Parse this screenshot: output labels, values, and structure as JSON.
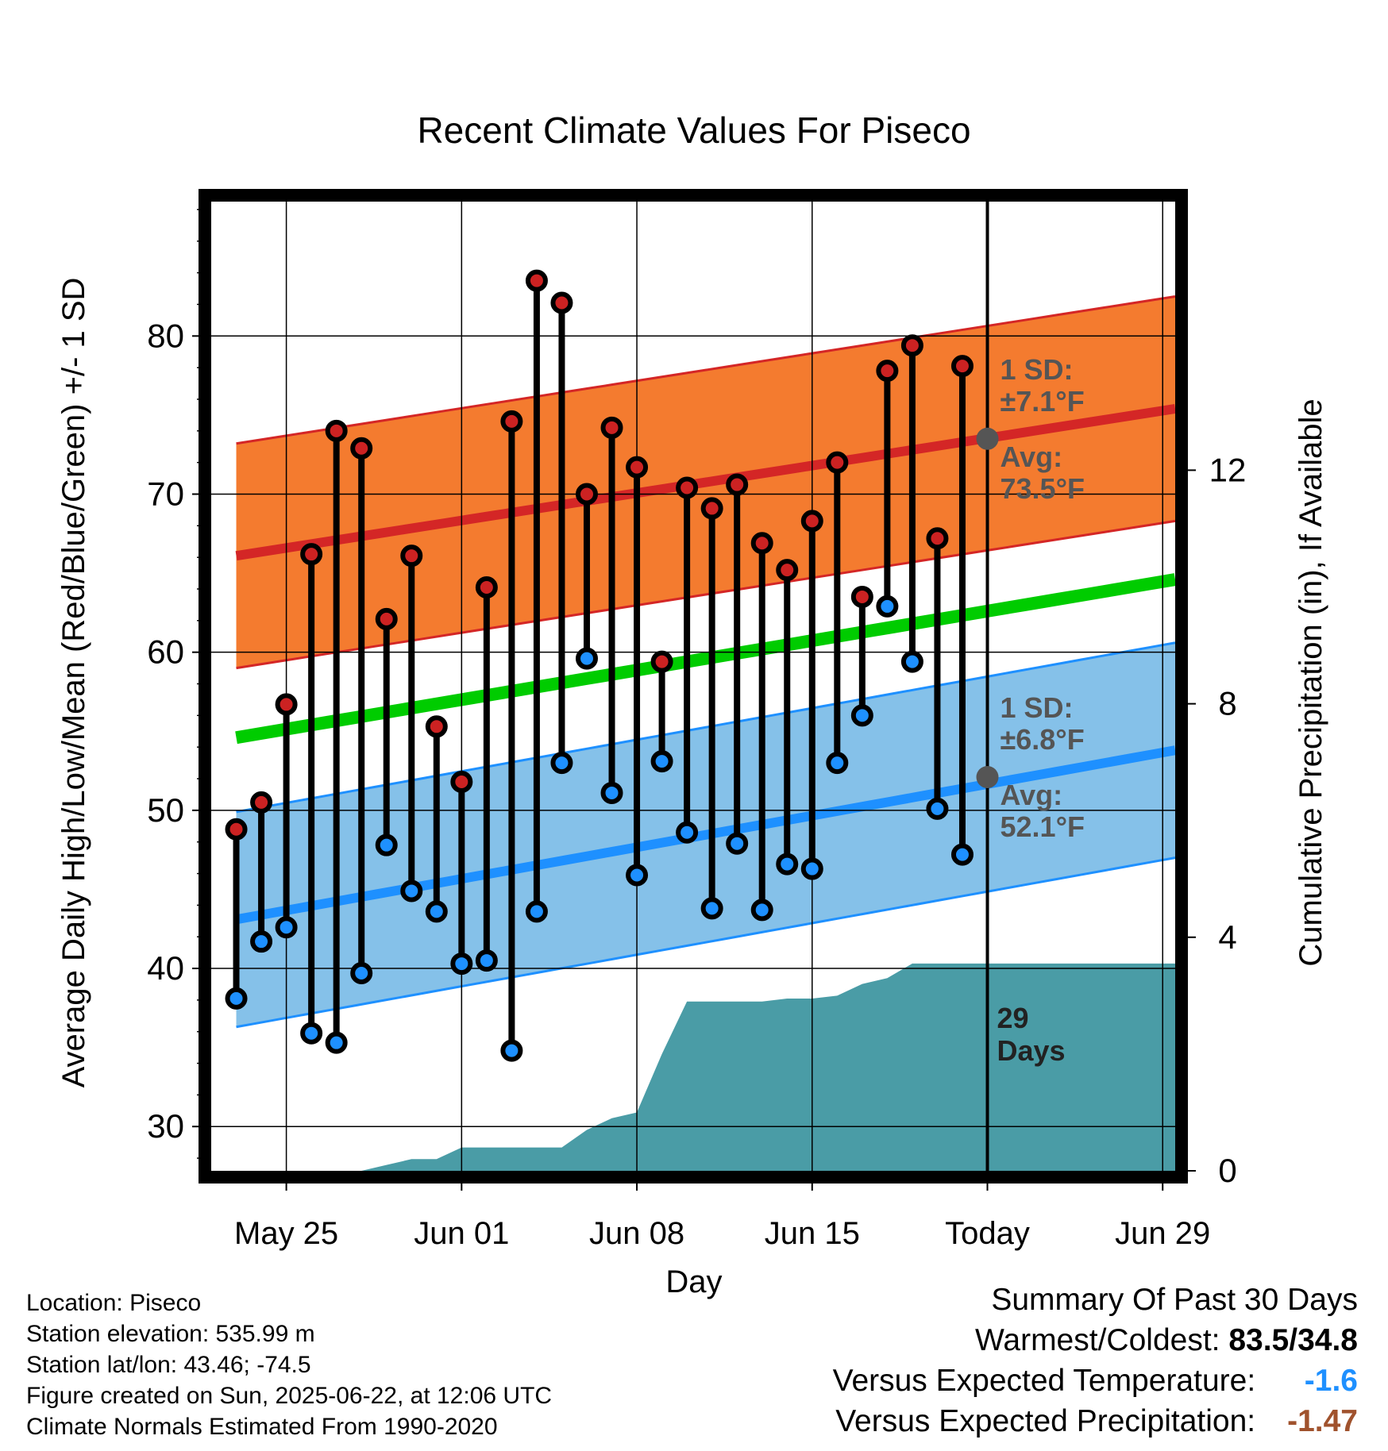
{
  "chart_data": {
    "type": "line",
    "title": "Recent Climate Values For Piseco",
    "xlabel": "Day",
    "ylabel": "Average Daily High/Low/Mean (Red/Blue/Green) +/- 1 SD",
    "y2label": "Cumulative Precipitation (in), If Available",
    "ylim": [
      27.2,
      88.5
    ],
    "y2lim": [
      0,
      16.6
    ],
    "xlim": [
      -3,
      35.5
    ],
    "x_ticks": [
      {
        "x": 0,
        "label": "May 25"
      },
      {
        "x": 7,
        "label": "Jun 01"
      },
      {
        "x": 14,
        "label": "Jun 08"
      },
      {
        "x": 21,
        "label": "Jun 15"
      },
      {
        "x": 28,
        "label": "Today"
      },
      {
        "x": 35,
        "label": "Jun 29"
      }
    ],
    "y_ticks": [
      30,
      40,
      50,
      60,
      70,
      80
    ],
    "y2_ticks": [
      0,
      4,
      8,
      12
    ],
    "grid": true,
    "today_x": 28,
    "today_label": [
      "29",
      "Days"
    ],
    "normals": {
      "x": [
        -2,
        35.5
      ],
      "high": [
        66.1,
        75.4
      ],
      "low": [
        43.1,
        53.8
      ],
      "mean": [
        54.6,
        64.6
      ],
      "high_sd": 7.1,
      "low_sd": 6.8,
      "high_colors": {
        "band": "#f47b2f",
        "line": "#d42626",
        "edge": "#d42626"
      },
      "low_colors": {
        "band": "#85c1e9",
        "line": "#1e90ff",
        "edge": "#1e90ff"
      },
      "mean_color": "#00cc00"
    },
    "annotations": {
      "high_sd": [
        "1 SD:",
        "±7.1°F"
      ],
      "high_avg": [
        "Avg:",
        "73.5°F"
      ],
      "low_sd": [
        "1 SD:",
        "±6.8°F"
      ],
      "low_avg": [
        "Avg:",
        "52.1°F"
      ],
      "high_avg_value": 73.5,
      "low_avg_value": 52.1,
      "color": "#555555"
    },
    "series": [
      {
        "name": "High",
        "color": "#cc2222",
        "x": [
          -2,
          -1,
          0,
          1,
          2,
          3,
          4,
          5,
          6,
          7,
          8,
          9,
          10,
          11,
          12,
          13,
          14,
          15,
          16,
          17,
          18,
          19,
          20,
          21,
          22,
          23,
          24,
          25,
          26,
          27
        ],
        "values": [
          48.8,
          50.5,
          56.7,
          66.2,
          74.0,
          72.9,
          62.1,
          66.1,
          55.3,
          51.8,
          64.1,
          74.6,
          83.5,
          82.1,
          70.0,
          74.2,
          71.7,
          59.4,
          70.4,
          69.1,
          70.6,
          66.9,
          65.2,
          68.3,
          72.0,
          63.5,
          77.8,
          79.4,
          67.2,
          78.1
        ]
      },
      {
        "name": "Low",
        "color": "#1e90ff",
        "x": [
          -2,
          -1,
          0,
          1,
          2,
          3,
          4,
          5,
          6,
          7,
          8,
          9,
          10,
          11,
          12,
          13,
          14,
          15,
          16,
          17,
          18,
          19,
          20,
          21,
          22,
          23,
          24,
          25,
          26,
          27
        ],
        "values": [
          38.1,
          41.7,
          42.6,
          35.9,
          35.3,
          39.7,
          47.8,
          44.9,
          43.6,
          40.3,
          40.5,
          34.8,
          43.6,
          53.0,
          59.6,
          51.1,
          45.9,
          53.1,
          48.6,
          43.8,
          47.9,
          43.7,
          46.6,
          46.3,
          53.0,
          56.0,
          62.9,
          59.4,
          50.1,
          47.2
        ]
      },
      {
        "name": "Precip",
        "color": "#4a9ca6",
        "x": [
          -2,
          -1,
          0,
          1,
          2,
          3,
          4,
          5,
          6,
          7,
          8,
          9,
          10,
          11,
          12,
          13,
          14,
          15,
          16,
          17,
          18,
          19,
          20,
          21,
          22,
          23,
          24,
          25,
          26,
          27,
          28,
          35.5
        ],
        "values": [
          0,
          0,
          0,
          0,
          0,
          0,
          0.1,
          0.2,
          0.2,
          0.4,
          0.4,
          0.4,
          0.4,
          0.4,
          0.7,
          0.9,
          1.0,
          2.0,
          2.9,
          2.9,
          2.9,
          2.9,
          2.95,
          2.95,
          3.0,
          3.2,
          3.3,
          3.55,
          3.55,
          3.55,
          3.55,
          3.55
        ]
      }
    ]
  },
  "footer": {
    "location": "Location: Piseco",
    "elevation": "Station elevation: 535.99 m",
    "latlon": "Station lat/lon: 43.46; -74.5",
    "created": "Figure created on Sun, 2025-06-22, at 12:06 UTC",
    "normals": "Climate Normals Estimated From 1990-2020"
  },
  "summary": {
    "heading": "Summary Of Past 30 Days",
    "warm_cold_label": "Warmest/Coldest:",
    "warm_cold_value": "83.5/34.8",
    "temp_label": "Versus Expected Temperature:",
    "temp_value": "-1.6",
    "temp_color": "#1e90ff",
    "precip_label": "Versus Expected Precipitation:",
    "precip_value": "-1.47",
    "precip_color": "#a0522d"
  }
}
